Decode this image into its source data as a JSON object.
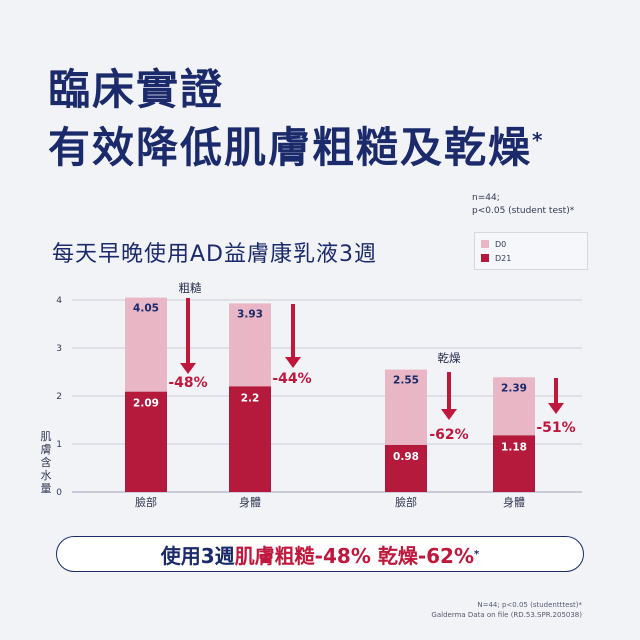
{
  "title": {
    "line1": "臨床實證",
    "line2": "有效降低肌膚粗糙及乾燥",
    "mark": "*"
  },
  "note_top": {
    "line1": "n=44;",
    "line2": "p<0.05 (student test)*"
  },
  "subtitle": "每天早晚使用AD益膚康乳液3週",
  "legend": [
    {
      "label": "D0",
      "color": "#e8b6c4"
    },
    {
      "label": "D21",
      "color": "#b51a3c"
    }
  ],
  "chart_data": {
    "type": "bar",
    "ylabel": "肌膚含水量",
    "ylim": [
      0,
      4
    ],
    "yticks": [
      0,
      1,
      2,
      3,
      4
    ],
    "groups": [
      {
        "label": "粗糙",
        "categories": [
          "臉部",
          "身體"
        ]
      },
      {
        "label": "乾燥",
        "categories": [
          "臉部",
          "身體"
        ]
      }
    ],
    "categories": [
      "臉部",
      "身體",
      "臉部",
      "身體"
    ],
    "series": [
      {
        "name": "D0",
        "values": [
          4.05,
          3.93,
          2.55,
          2.39
        ]
      },
      {
        "name": "D21",
        "values": [
          2.09,
          2.2,
          0.98,
          1.18
        ]
      }
    ],
    "value_labels_d0": [
      "4.05",
      "3.93",
      "2.55",
      "2.39"
    ],
    "value_labels_d21": [
      "2.09",
      "2.2",
      "0.98",
      "1.18"
    ],
    "changes": [
      "-48%",
      "-44%",
      "-62%",
      "-51%"
    ],
    "grid": true,
    "colors": {
      "d0": "#e8b6c4",
      "d21": "#b51a3c",
      "arrow": "#c0183d",
      "grid": "#a0a4b8",
      "text": "#1b2a6b"
    }
  },
  "summary": {
    "prefix": "使用3週 ",
    "part1": "肌膚粗糙-48% 乾燥-62%",
    "mark": "*"
  },
  "footnote": {
    "line1": "N=44; p<0.05 (studentttest)*",
    "line2": "Galderma Data on file (RD.53.SPR.205038)"
  }
}
